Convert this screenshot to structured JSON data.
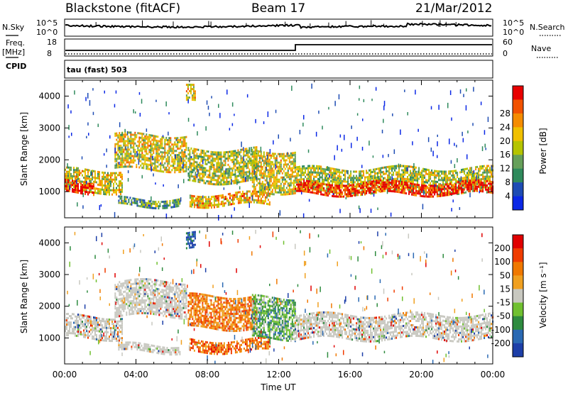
{
  "header": {
    "station": "Blackstone (fitACF)",
    "beam": "Beam 17",
    "date": "21/Mar/2012"
  },
  "side_labels": {
    "nsky": "N.Sky",
    "freq_top": "Freq.",
    "freq_unit": "[MHz]",
    "cpid": "CPID",
    "nsearch": "N.Search",
    "nave": "Nave",
    "cpid_value": "tau (fast) 503"
  },
  "mini_axes": {
    "noise_ticks_left": [
      "10^5",
      "10^0"
    ],
    "noise_ticks_right": [
      "10^5",
      "10^0"
    ],
    "freq_ticks": [
      "18",
      "8"
    ],
    "nave_ticks": [
      "60",
      "0"
    ]
  },
  "colors": {
    "power_scale": [
      "#0b28e6",
      "#1e4cb4",
      "#2f8a5c",
      "#66a05a",
      "#b5c400",
      "#f0c000",
      "#f58c00",
      "#f25200",
      "#e80000"
    ],
    "velocity_scale": [
      "#1d3fa8",
      "#2a69b3",
      "#2e8b3f",
      "#70c030",
      "#c8c8c0",
      "#f0a020",
      "#f07800",
      "#f03c00",
      "#e00000"
    ]
  },
  "chart_data": [
    {
      "type": "heatmap",
      "name": "power",
      "title": "",
      "xlabel": "",
      "ylabel": "Slant Range [km]",
      "colorbar_label": "Power [dB]",
      "colorbar_ticks": [
        "4",
        "8",
        "12",
        "16",
        "20",
        "24",
        "28"
      ],
      "x_ticks": [
        "00:00",
        "04:00",
        "08:00",
        "12:00",
        "16:00",
        "20:00",
        "00:00"
      ],
      "y_ticks": [
        "1000",
        "2000",
        "3000",
        "4000"
      ],
      "x_range_hours": [
        0,
        24
      ],
      "y_range_km": [
        180,
        4500
      ],
      "bands": [
        {
          "t0": 0.0,
          "t1": 3.2,
          "r0": 1000,
          "r1": 1700,
          "level": 0.55
        },
        {
          "t0": 0.0,
          "t1": 1.6,
          "r0": 950,
          "r1": 1350,
          "level": 0.95
        },
        {
          "t0": 2.8,
          "t1": 6.8,
          "r0": 1700,
          "r1": 2800,
          "level": 0.55
        },
        {
          "t0": 3.0,
          "t1": 6.5,
          "r0": 550,
          "r1": 800,
          "level": 0.35
        },
        {
          "t0": 6.8,
          "t1": 7.3,
          "r0": 3800,
          "r1": 4300,
          "level": 0.6
        },
        {
          "t0": 6.9,
          "t1": 10.8,
          "r0": 1300,
          "r1": 2350,
          "level": 0.5
        },
        {
          "t0": 7.0,
          "t1": 11.5,
          "r0": 550,
          "r1": 950,
          "level": 0.65
        },
        {
          "t0": 10.5,
          "t1": 12.9,
          "r0": 1000,
          "r1": 2300,
          "level": 0.55
        },
        {
          "t0": 12.9,
          "t1": 24.0,
          "r0": 1000,
          "r1": 1750,
          "level": 0.5
        },
        {
          "t0": 12.9,
          "t1": 24.0,
          "r0": 900,
          "r1": 1300,
          "level": 0.92
        }
      ]
    },
    {
      "type": "heatmap",
      "name": "velocity",
      "title": "",
      "xlabel": "Time UT",
      "ylabel": "Slant Range [km]",
      "colorbar_label": "Velocity [m s⁻¹]",
      "colorbar_ticks": [
        "200",
        "100",
        "50",
        "15",
        "-15",
        "-50",
        "-100",
        "-200"
      ],
      "x_ticks": [
        "00:00",
        "04:00",
        "08:00",
        "12:00",
        "16:00",
        "20:00",
        "00:00"
      ],
      "y_ticks": [
        "1000",
        "2000",
        "3000",
        "4000"
      ],
      "x_range_hours": [
        0,
        24
      ],
      "y_range_km": [
        180,
        4500
      ],
      "bands": [
        {
          "t0": 0.0,
          "t1": 3.2,
          "r0": 1000,
          "r1": 1700,
          "level": 0.5
        },
        {
          "t0": 2.8,
          "t1": 6.8,
          "r0": 1700,
          "r1": 2800,
          "level": 0.5
        },
        {
          "t0": 3.0,
          "t1": 6.5,
          "r0": 550,
          "r1": 800,
          "level": 0.5
        },
        {
          "t0": 6.8,
          "t1": 7.3,
          "r0": 3800,
          "r1": 4300,
          "level": 0.1
        },
        {
          "t0": 6.9,
          "t1": 10.8,
          "r0": 1300,
          "r1": 2350,
          "level": 0.7
        },
        {
          "t0": 7.0,
          "t1": 11.5,
          "r0": 550,
          "r1": 950,
          "level": 0.75
        },
        {
          "t0": 10.5,
          "t1": 12.9,
          "r0": 1000,
          "r1": 2300,
          "level": 0.35
        },
        {
          "t0": 12.9,
          "t1": 24.0,
          "r0": 1000,
          "r1": 1750,
          "level": 0.5
        }
      ]
    }
  ]
}
